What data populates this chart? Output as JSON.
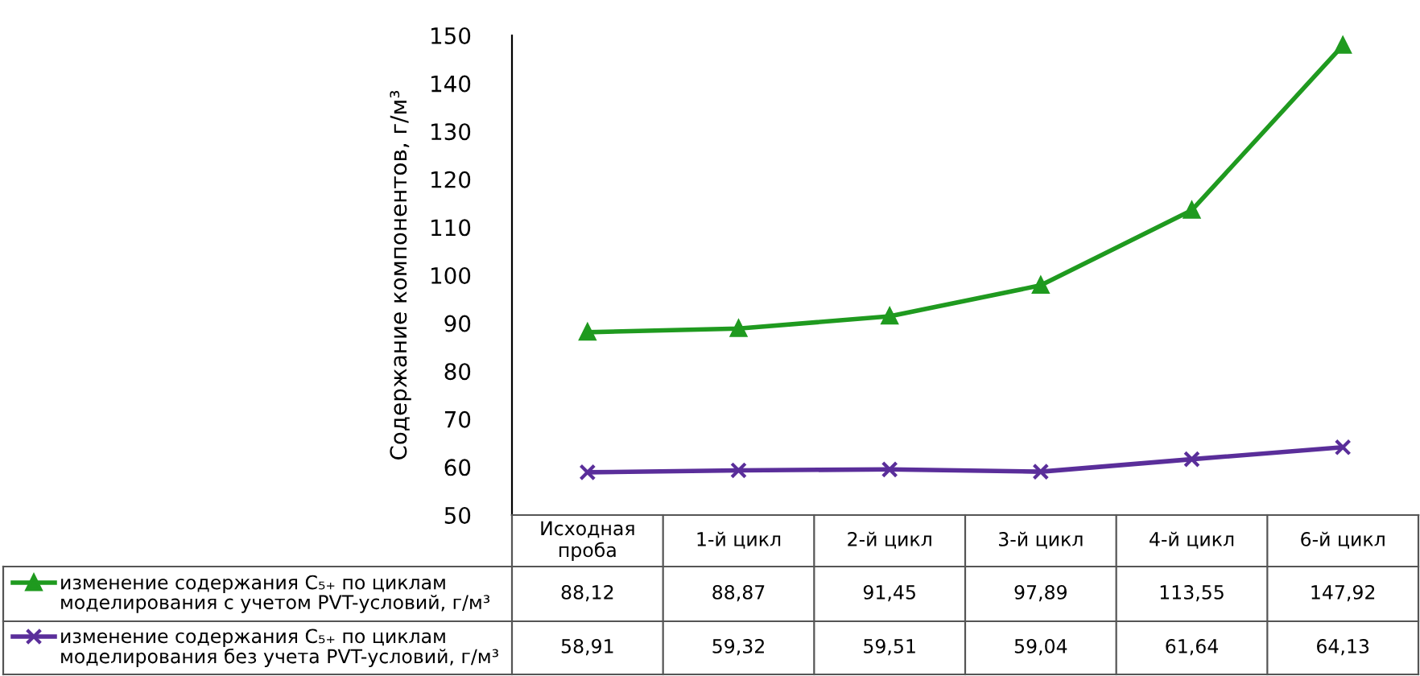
{
  "chart_data": {
    "type": "line",
    "ylabel": "Содержание компонентов, г/м³",
    "categories": [
      "Исходная\nпроба",
      "1-й цикл",
      "2-й цикл",
      "3-й цикл",
      "4-й цикл",
      "6-й цикл"
    ],
    "series": [
      {
        "name": "изменение содержания C₅₊ по циклам\nмоделирования с учетом PVT-условий, г/м³",
        "color": "#1f9a1f",
        "marker": "triangle",
        "values": [
          88.12,
          88.87,
          91.45,
          97.89,
          113.55,
          147.92
        ],
        "value_labels": [
          "88,12",
          "88,87",
          "91,45",
          "97,89",
          "113,55",
          "147,92"
        ]
      },
      {
        "name": "изменение содержания C₅₊ по циклам\nмоделирования без учета PVT-условий, г/м³",
        "color": "#5a2e9a",
        "marker": "cross",
        "values": [
          58.91,
          59.32,
          59.51,
          59.04,
          61.64,
          64.13
        ],
        "value_labels": [
          "58,91",
          "59,32",
          "59,51",
          "59,04",
          "61,64",
          "64,13"
        ]
      }
    ],
    "ylim": [
      50,
      150
    ],
    "yticks": [
      50,
      60,
      70,
      80,
      90,
      100,
      110,
      120,
      130,
      140,
      150
    ],
    "grid": false,
    "legend": "bottom left",
    "line_style": "solid"
  }
}
